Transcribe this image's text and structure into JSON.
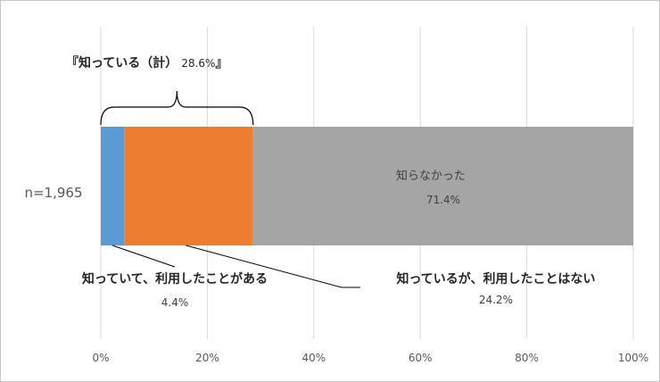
{
  "chart_data": {
    "type": "bar",
    "orientation": "horizontal",
    "stacked": true,
    "categories": [
      "n=1,965"
    ],
    "series": [
      {
        "name": "知っていて、利用したことがある",
        "values": [
          4.4
        ],
        "value_label": "4.4%",
        "color": "#5b9bd5"
      },
      {
        "name": "知っているが、利用したことはない",
        "values": [
          24.2
        ],
        "value_label": "24.2%",
        "color": "#ed7d31"
      },
      {
        "name": "知らなかった",
        "values": [
          71.4
        ],
        "value_label": "71.4%",
        "color": "#a5a5a5"
      }
    ],
    "xlim": [
      0,
      100
    ],
    "x_ticks": [
      "0%",
      "20%",
      "40%",
      "60%",
      "80%",
      "100%"
    ],
    "grid": true,
    "annotation": {
      "label": "『知っている（計）",
      "value": "28.6%",
      "suffix": "』"
    }
  }
}
